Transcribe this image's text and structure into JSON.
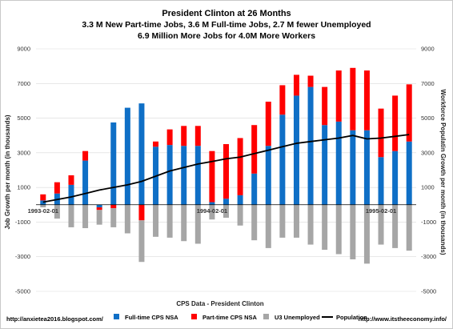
{
  "chart_data": {
    "type": "bar",
    "title_lines": [
      "President Clinton at 26 Months",
      "3.3 M New Part-time Jobs, 3.6 M Full-time Jobs, 2.7 M fewer Unemployed",
      "6.9 Million More Jobs for 4.0M More Workers"
    ],
    "ylabel_left": "Job Growth per month (in thousands)",
    "ylabel_right": "Workforce Populatin Growth per month (in thousands)",
    "xlabel": "CPS Data - President Clinton",
    "ylim": [
      -5000,
      9000
    ],
    "y_ticks": [
      9000,
      7000,
      5000,
      3000,
      1000,
      -1000,
      -3000,
      -5000
    ],
    "date_labels": [
      {
        "index": 0,
        "label": "1993-02-01"
      },
      {
        "index": 12,
        "label": "1994-02-01"
      },
      {
        "index": 24,
        "label": "1995-02-01"
      }
    ],
    "series": [
      {
        "name": "Full-time CPS NSA",
        "color": "#0f6fc6",
        "values": [
          250,
          650,
          1150,
          2550,
          -150,
          4750,
          5600,
          5850,
          3350,
          3450,
          3400,
          3400,
          150,
          350,
          550,
          1800,
          3400,
          5200,
          6300,
          6800,
          4600,
          4800,
          4300,
          4300,
          2750,
          3100,
          3650
        ]
      },
      {
        "name": "Part-time CPS NSA",
        "color": "#ff0000",
        "values": [
          350,
          650,
          550,
          550,
          -150,
          -200,
          0,
          -900,
          300,
          900,
          1150,
          1150,
          2950,
          3150,
          3300,
          2800,
          2550,
          1700,
          1200,
          650,
          2200,
          2950,
          3600,
          3450,
          2800,
          3200,
          3300
        ]
      },
      {
        "name": "U3 Unemployed",
        "color": "#a6a6a6",
        "values": [
          -150,
          -800,
          -1300,
          -1350,
          -850,
          -1100,
          -1650,
          -2400,
          -1850,
          -1900,
          -2100,
          -2250,
          -850,
          -750,
          -1200,
          -2050,
          -2500,
          -1900,
          -1900,
          -2300,
          -2600,
          -2850,
          -3150,
          -3400,
          -2300,
          -2500,
          -2650
        ]
      },
      {
        "name": "Population",
        "color": "#000000",
        "type": "line",
        "values": [
          150,
          300,
          450,
          650,
          850,
          1000,
          1150,
          1350,
          1650,
          1950,
          2150,
          2350,
          2500,
          2650,
          2750,
          2950,
          3150,
          3350,
          3550,
          3650,
          3750,
          3850,
          4000,
          3800,
          3850,
          3950,
          4050
        ]
      }
    ],
    "legend_placement": "bottom"
  },
  "footer": {
    "left": "http://anxietea2016.blogspot.com/",
    "right": "http://www.itstheeconomy.info/"
  }
}
